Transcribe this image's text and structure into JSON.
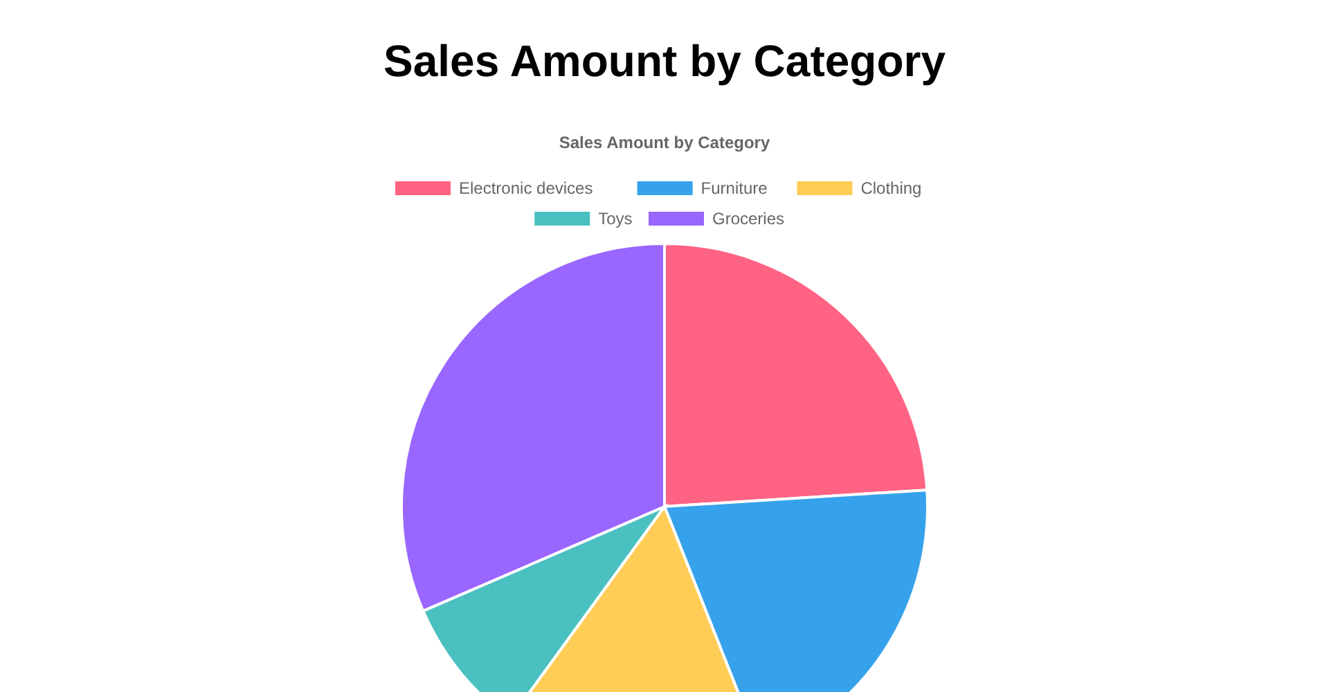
{
  "chart_data": {
    "type": "pie",
    "title": "Sales Amount by Category",
    "subtitle": "Sales Amount by Category",
    "categories": [
      "Electronic devices",
      "Furniture",
      "Clothing",
      "Toys",
      "Groceries"
    ],
    "values": [
      24,
      20,
      16,
      8.5,
      31.5
    ],
    "colors": [
      "#ff6384",
      "#36a2eb",
      "#ffcd56",
      "#4bc0c0",
      "#9966ff"
    ],
    "legend": "top"
  }
}
